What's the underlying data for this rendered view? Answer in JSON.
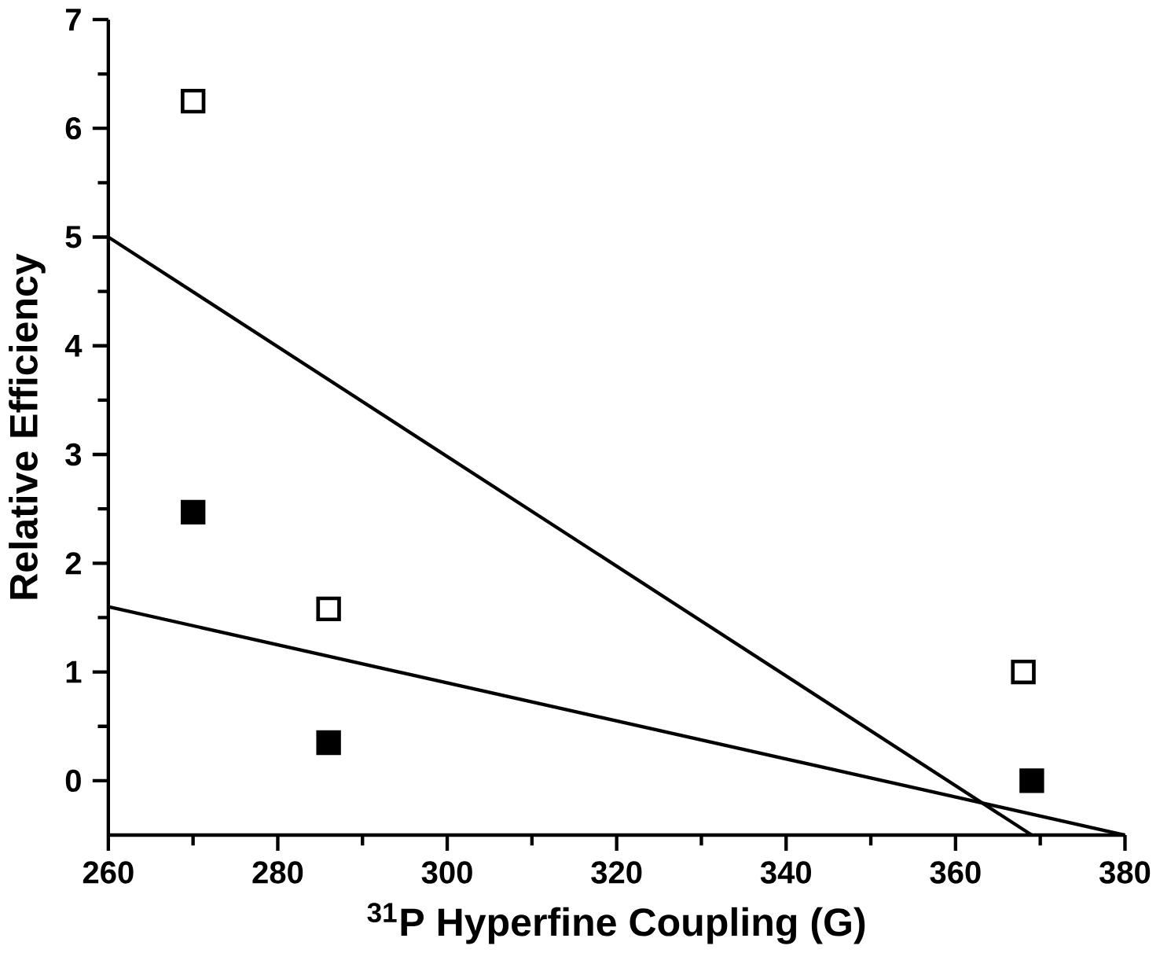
{
  "chart_data": {
    "type": "scatter",
    "xlabel": "$^{31}$P Hyperfine Coupling (G)",
    "ylabel": "Relative Efficiency",
    "xlim": [
      260,
      380
    ],
    "ylim": [
      -0.5,
      7
    ],
    "xticks": [
      260,
      280,
      300,
      320,
      340,
      360,
      380
    ],
    "yticks": [
      0,
      1,
      2,
      3,
      4,
      5,
      6,
      7
    ],
    "marker": "square",
    "series": [
      {
        "color": "#ffffff",
        "x": [
          270,
          286,
          368
        ],
        "values": [
          6.25,
          1.58,
          1.0
        ]
      },
      {
        "color": "#000000",
        "x": [
          270,
          286,
          369
        ],
        "values": [
          2.47,
          0.35,
          0.0
        ]
      },
      {
        "type": "line",
        "marker": "none",
        "color": "#000000",
        "x": [
          260,
          369
        ],
        "values": [
          5.0,
          -0.5
        ]
      },
      {
        "type": "line",
        "marker": "none",
        "color": "#000000",
        "x": [
          260,
          380
        ],
        "values": [
          1.6,
          -0.5
        ]
      }
    ]
  }
}
